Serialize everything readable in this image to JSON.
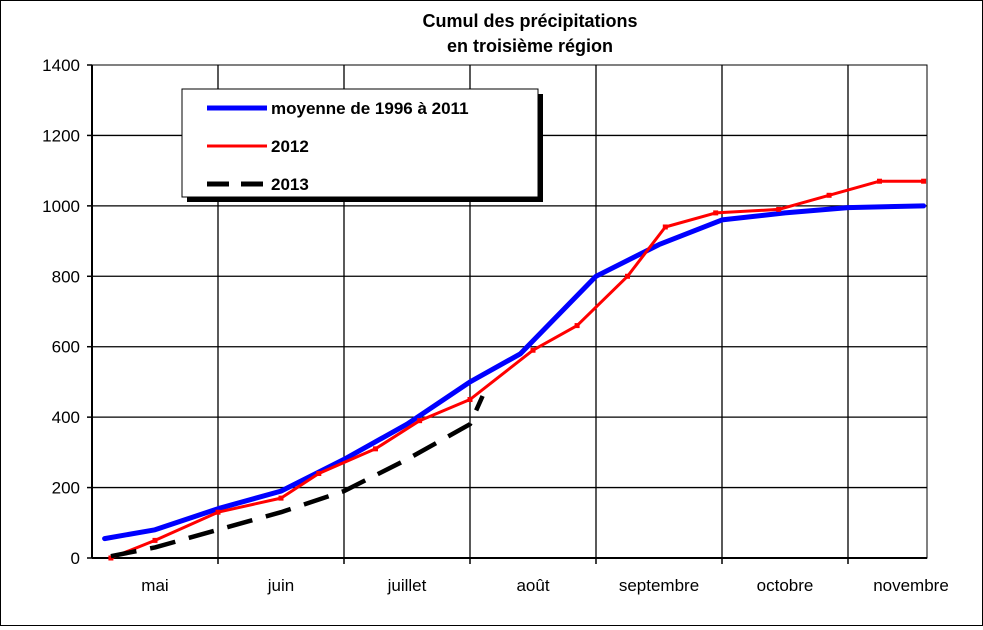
{
  "chart_data": {
    "type": "line",
    "title": "Cumul des précipitations",
    "subtitle": "en troisième région",
    "xlabel": "",
    "ylabel": "",
    "ylim": [
      0,
      1400
    ],
    "yticks": [
      0,
      200,
      400,
      600,
      800,
      1000,
      1200,
      1400
    ],
    "xlim": [
      0,
      6.6
    ],
    "categories": [
      "mai",
      "juin",
      "juillet",
      "août",
      "septembre",
      "octobre",
      "novembre"
    ],
    "grid": true,
    "legend_position": "top-left",
    "series": [
      {
        "name": "moyenne de 1996 à 2011",
        "color": "#0000ff",
        "style": "solid",
        "markers": false,
        "x": [
          0.1,
          0.5,
          1.0,
          1.5,
          2.0,
          2.5,
          3.0,
          3.4,
          4.0,
          4.5,
          5.0,
          5.5,
          6.0,
          6.6
        ],
        "y": [
          55,
          80,
          140,
          190,
          280,
          380,
          500,
          580,
          800,
          890,
          960,
          980,
          995,
          1000
        ]
      },
      {
        "name": "2012",
        "color": "#ff0000",
        "style": "solid",
        "markers": true,
        "x": [
          0.15,
          0.5,
          1.0,
          1.5,
          1.8,
          2.25,
          2.6,
          3.0,
          3.5,
          3.85,
          4.25,
          4.55,
          4.95,
          5.45,
          5.85,
          6.25,
          6.6
        ],
        "y": [
          0,
          50,
          130,
          170,
          240,
          310,
          390,
          450,
          590,
          660,
          800,
          940,
          980,
          990,
          1030,
          1070,
          1070
        ]
      },
      {
        "name": "2013",
        "color": "#000000",
        "style": "dashed",
        "markers": false,
        "x": [
          0.15,
          0.5,
          1.0,
          1.5,
          2.0,
          2.5,
          3.0,
          3.1
        ],
        "y": [
          5,
          30,
          80,
          130,
          190,
          280,
          380,
          460
        ]
      }
    ]
  }
}
